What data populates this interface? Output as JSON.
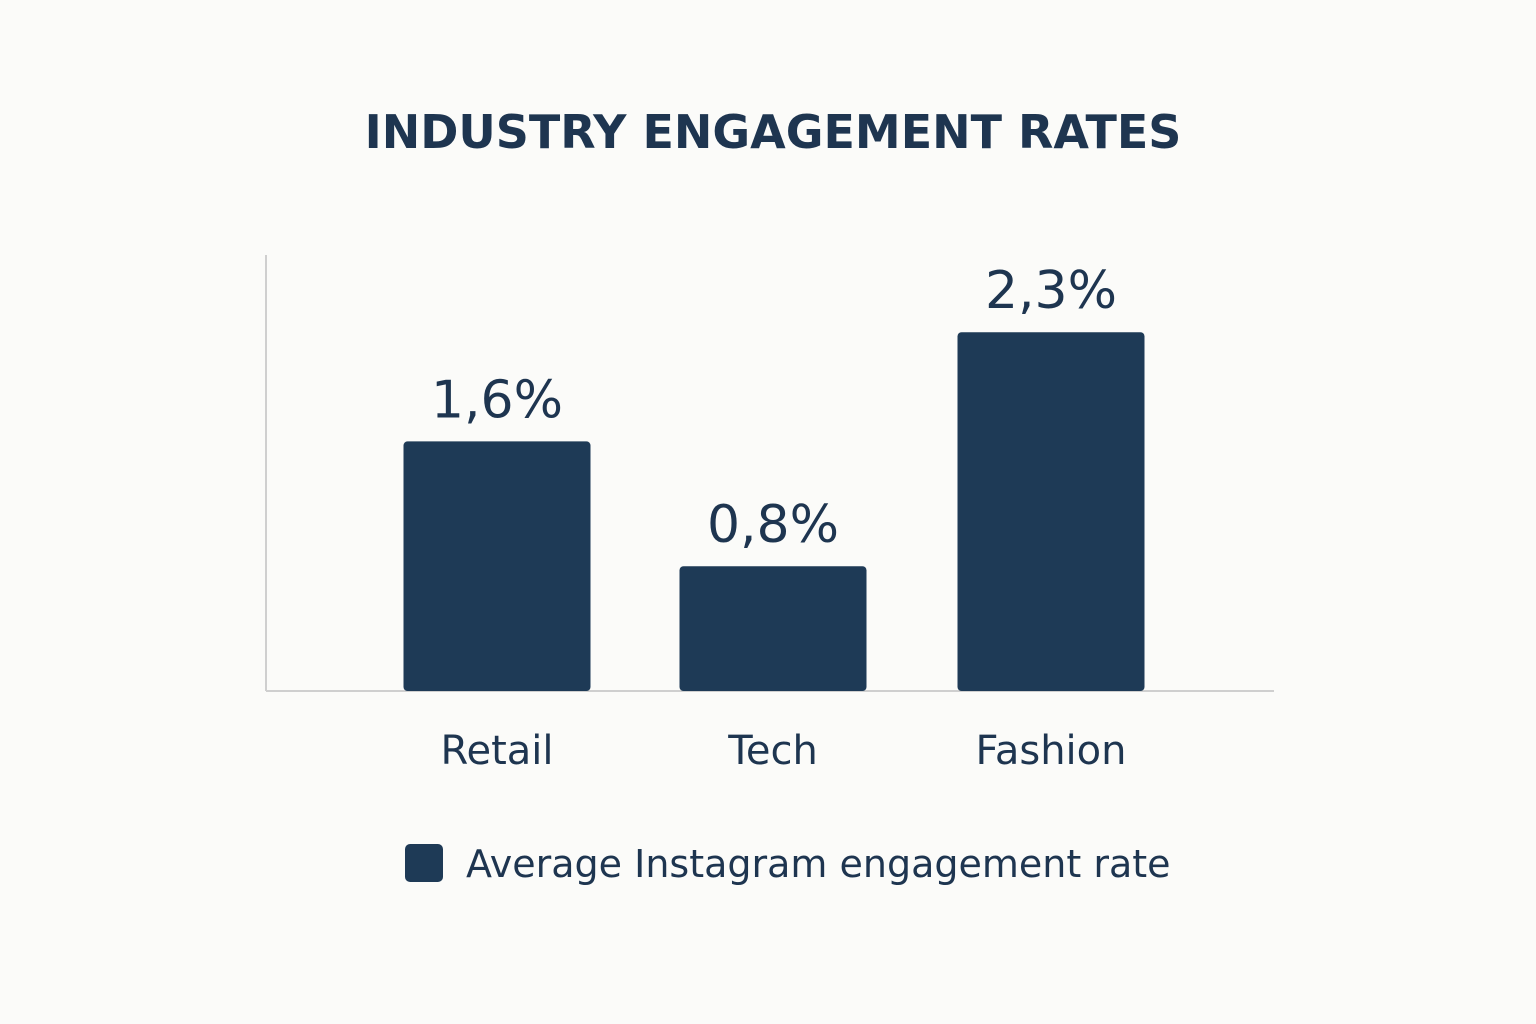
{
  "chart_data": {
    "type": "bar",
    "title": "INDUSTRY ENGAGEMENT RATES",
    "categories": [
      "Retail",
      "Tech",
      "Fashion"
    ],
    "series": [
      {
        "name": "Average Instagram engagement rate",
        "values": [
          1.6,
          0.8,
          2.3
        ],
        "labels": [
          "1,6%",
          "0,8%",
          "2,3%"
        ]
      }
    ],
    "xlabel": "",
    "ylabel": "",
    "legend_position": "bottom-center",
    "grid": false
  },
  "colors": {
    "bar": "#1e3a56",
    "text": "#1e3550",
    "axis": "#cfcfcf",
    "background": "#fbfbf9"
  }
}
